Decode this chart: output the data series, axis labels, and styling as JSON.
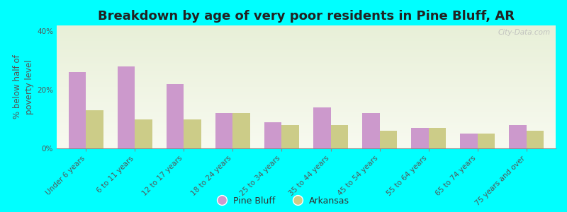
{
  "title": "Breakdown by age of very poor residents in Pine Bluff, AR",
  "ylabel": "% below half of\npoverty level",
  "categories": [
    "Under 6 years",
    "6 to 11 years",
    "12 to 17 years",
    "18 to 24 years",
    "25 to 34 years",
    "35 to 44 years",
    "45 to 54 years",
    "55 to 64 years",
    "65 to 74 years",
    "75 years and over"
  ],
  "pine_bluff": [
    26,
    28,
    22,
    12,
    9,
    14,
    12,
    7,
    5,
    8
  ],
  "arkansas": [
    13,
    10,
    10,
    12,
    8,
    8,
    6,
    7,
    5,
    6
  ],
  "pine_bluff_color": "#cc99cc",
  "arkansas_color": "#cccc88",
  "ylim": [
    0,
    42
  ],
  "yticks": [
    0,
    20,
    40
  ],
  "ytick_labels": [
    "0%",
    "20%",
    "40%"
  ],
  "background_color": "#00ffff",
  "plot_bg_top": "#e8f0d8",
  "plot_bg_bottom": "#f8faf0",
  "title_fontsize": 13,
  "axis_label_fontsize": 8.5,
  "tick_label_fontsize": 7.5,
  "legend_pine_bluff": "Pine Bluff",
  "legend_arkansas": "Arkansas",
  "watermark": "City-Data.com"
}
